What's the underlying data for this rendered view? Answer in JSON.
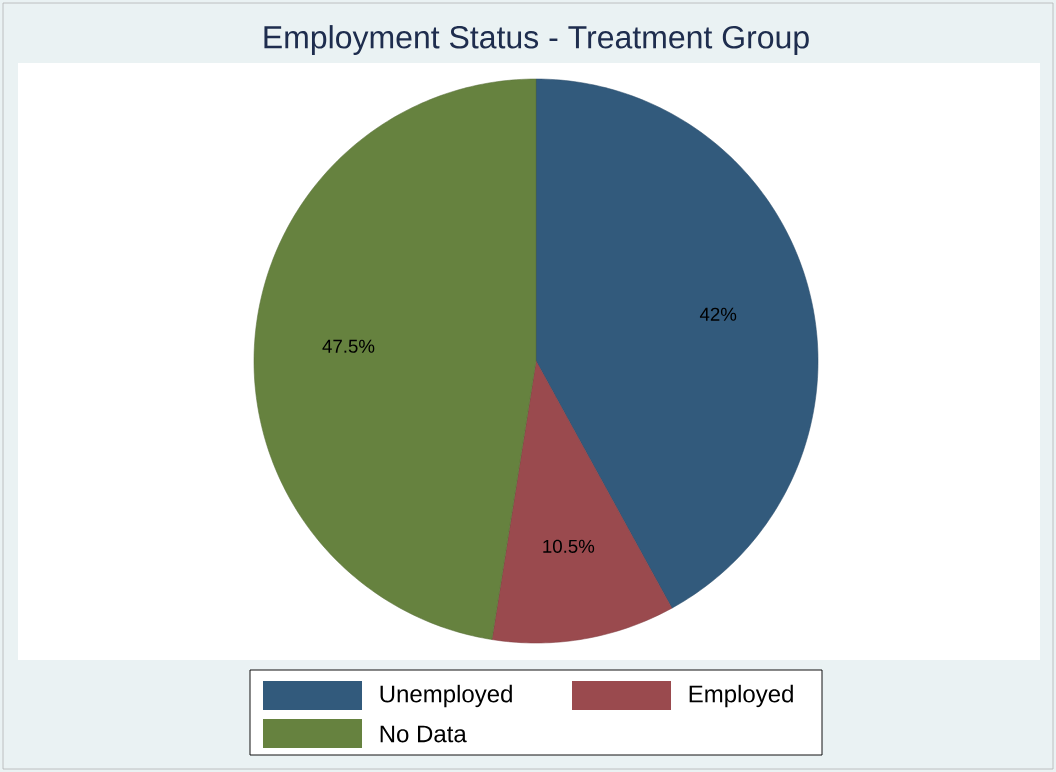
{
  "chart_data": {
    "type": "pie",
    "title": "Employment Status - Treatment Group",
    "categories": [
      "Unemployed",
      "Employed",
      "No Data"
    ],
    "values": [
      42,
      10.5,
      47.5
    ],
    "colors": [
      "#325a7c",
      "#9a4a4e",
      "#66823f"
    ],
    "value_labels": [
      "42%",
      "10.5%",
      "47.5%"
    ],
    "legend": "bottom"
  }
}
